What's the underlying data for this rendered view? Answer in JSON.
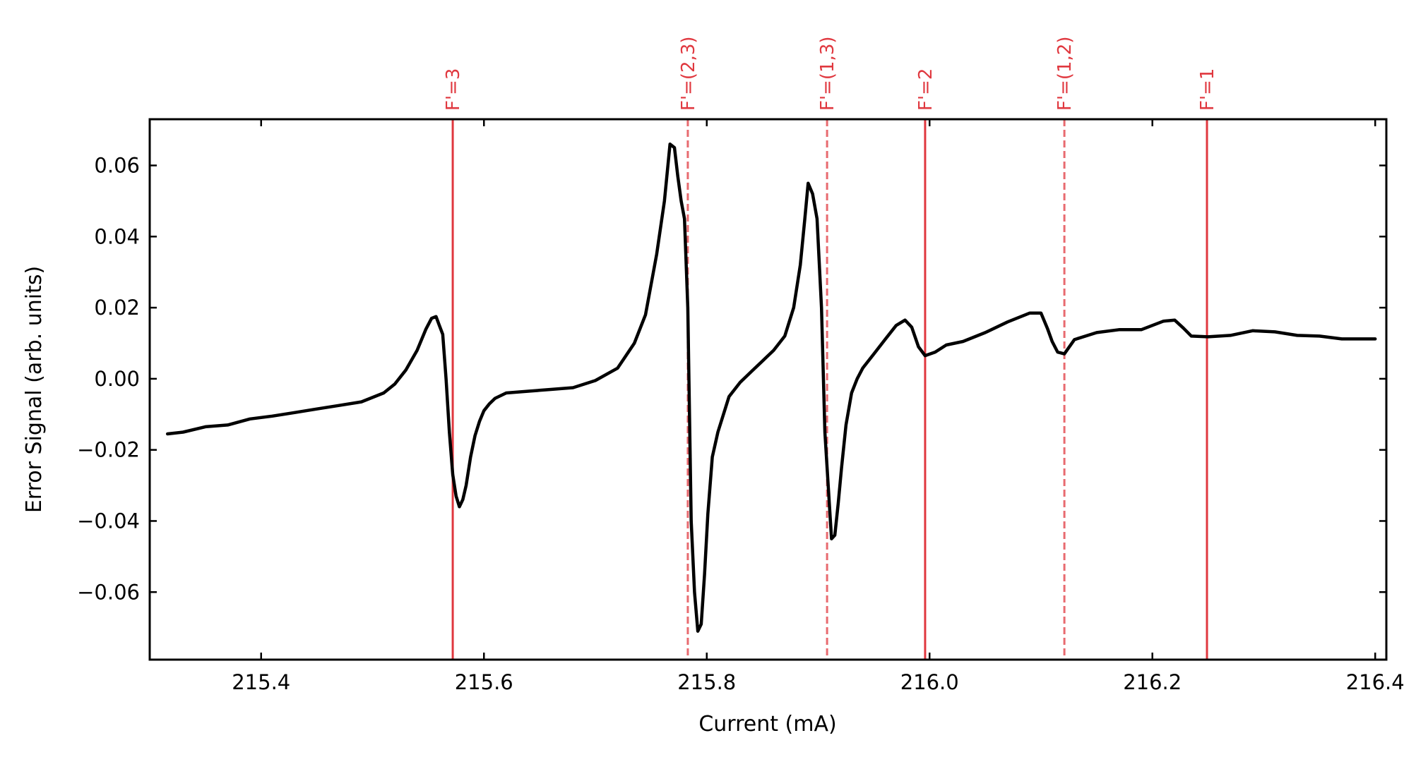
{
  "chart_data": {
    "type": "line",
    "title": "",
    "xlabel": "Current (mA)",
    "ylabel": "Error Signal (arb. units)",
    "xlim": [
      215.3,
      216.41
    ],
    "ylim": [
      -0.079,
      0.073
    ],
    "xticks": [
      215.4,
      215.6,
      215.8,
      216.0,
      216.2,
      216.4
    ],
    "xtick_labels": [
      "215.4",
      "215.6",
      "215.8",
      "216.0",
      "216.2",
      "216.4"
    ],
    "yticks": [
      -0.06,
      -0.04,
      -0.02,
      0.0,
      0.02,
      0.04,
      0.06
    ],
    "ytick_labels": [
      "−0.06",
      "−0.04",
      "−0.02",
      "0.00",
      "0.02",
      "0.04",
      "0.06"
    ],
    "grid": false,
    "legend": "none",
    "ref_color": "#e0383f",
    "line_color": "#000000",
    "reference_lines": [
      {
        "label": "F'=3",
        "x": 215.572,
        "style": "solid"
      },
      {
        "label": "F'=(2,3)",
        "x": 215.783,
        "style": "dashed"
      },
      {
        "label": "F'=(1,3)",
        "x": 215.908,
        "style": "dashed"
      },
      {
        "label": "F'=2",
        "x": 215.996,
        "style": "solid"
      },
      {
        "label": "F'=(1,2)",
        "x": 216.121,
        "style": "dashed"
      },
      {
        "label": "F'=1",
        "x": 216.249,
        "style": "solid"
      }
    ],
    "series": [
      {
        "x": [
          215.316,
          215.33,
          215.35,
          215.37,
          215.39,
          215.41,
          215.43,
          215.45,
          215.47,
          215.49,
          215.51,
          215.52,
          215.53,
          215.54,
          215.548,
          215.553,
          215.557,
          215.56,
          215.563,
          215.566,
          215.569,
          215.572,
          215.575,
          215.578,
          215.581,
          215.584,
          215.588,
          215.592,
          215.596,
          215.6,
          215.605,
          215.61,
          215.62,
          215.64,
          215.66,
          215.68,
          215.7,
          215.72,
          215.735,
          215.745,
          215.755,
          215.762,
          215.767,
          215.771,
          215.774,
          215.777,
          215.78,
          215.783,
          215.786,
          215.789,
          215.792,
          215.795,
          215.798,
          215.801,
          215.805,
          215.81,
          215.815,
          215.82,
          215.83,
          215.84,
          215.85,
          215.86,
          215.87,
          215.878,
          215.884,
          215.888,
          215.891,
          215.895,
          215.899,
          215.903,
          215.906,
          215.909,
          215.912,
          215.915,
          215.918,
          215.921,
          215.925,
          215.93,
          215.935,
          215.94,
          215.95,
          215.96,
          215.97,
          215.978,
          215.984,
          215.99,
          215.996,
          216.005,
          216.015,
          216.03,
          216.05,
          216.07,
          216.09,
          216.1,
          216.106,
          216.11,
          216.115,
          216.121,
          216.13,
          216.15,
          216.17,
          216.19,
          216.21,
          216.22,
          216.228,
          216.235,
          216.25,
          216.27,
          216.29,
          216.31,
          216.33,
          216.35,
          216.37,
          216.4
        ],
        "y": [
          -0.0155,
          -0.015,
          -0.0135,
          -0.013,
          -0.0113,
          -0.0105,
          -0.0095,
          -0.0085,
          -0.0075,
          -0.0065,
          -0.004,
          -0.0015,
          0.0025,
          0.008,
          0.014,
          0.017,
          0.0175,
          0.015,
          0.0125,
          0.0,
          -0.015,
          -0.027,
          -0.033,
          -0.036,
          -0.034,
          -0.03,
          -0.022,
          -0.016,
          -0.012,
          -0.009,
          -0.007,
          -0.0055,
          -0.004,
          -0.0035,
          -0.003,
          -0.0025,
          -0.0005,
          0.003,
          0.01,
          0.018,
          0.035,
          0.05,
          0.066,
          0.065,
          0.057,
          0.05,
          0.045,
          0.02,
          -0.04,
          -0.06,
          -0.071,
          -0.069,
          -0.055,
          -0.038,
          -0.022,
          -0.015,
          -0.01,
          -0.005,
          -0.001,
          0.002,
          0.005,
          0.008,
          0.012,
          0.02,
          0.032,
          0.045,
          0.055,
          0.052,
          0.045,
          0.02,
          -0.015,
          -0.03,
          -0.045,
          -0.044,
          -0.035,
          -0.025,
          -0.013,
          -0.004,
          0.0,
          0.003,
          0.007,
          0.011,
          0.015,
          0.0165,
          0.0145,
          0.009,
          0.0065,
          0.0075,
          0.0095,
          0.0105,
          0.013,
          0.016,
          0.0185,
          0.0185,
          0.014,
          0.0105,
          0.0075,
          0.007,
          0.011,
          0.013,
          0.0138,
          0.0138,
          0.0162,
          0.0165,
          0.0142,
          0.012,
          0.0118,
          0.0122,
          0.0135,
          0.0132,
          0.0122,
          0.012,
          0.0112,
          0.0112
        ]
      }
    ]
  }
}
